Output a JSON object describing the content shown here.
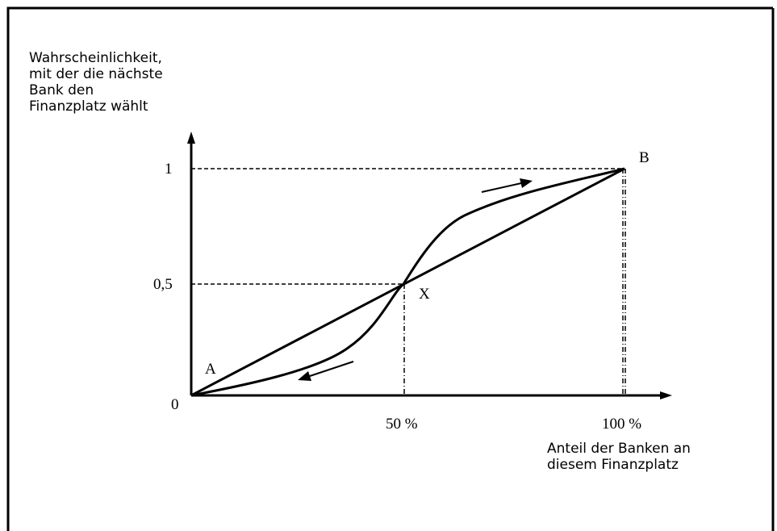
{
  "diagram": {
    "y_axis_label": [
      "Wahrscheinlichkeit,",
      "mit der die nächste",
      "Bank den",
      "Finanzplatz wählt"
    ],
    "x_axis_label": [
      "Anteil der Banken an",
      "diesem Finanzplatz"
    ],
    "y_ticks": [
      "1",
      "0,5",
      "0"
    ],
    "x_ticks": [
      "50 %",
      "100 %"
    ],
    "points": {
      "a": "A",
      "b": "B",
      "x": "X"
    }
  }
}
